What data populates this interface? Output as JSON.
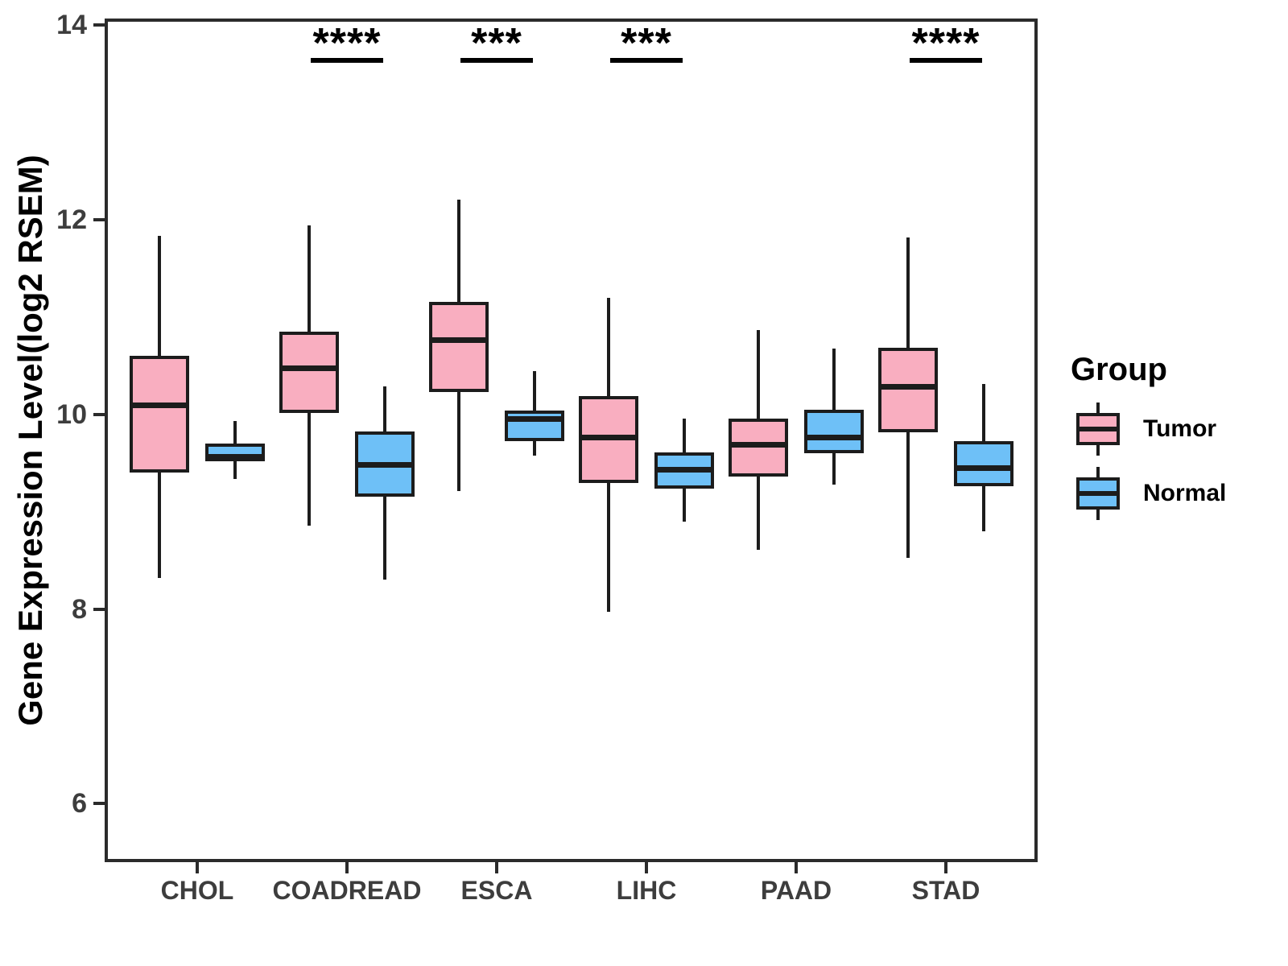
{
  "chart_data": {
    "type": "boxplot",
    "title": "",
    "xlabel": "",
    "ylabel": "Gene Expression Level(log2 RSEM)",
    "ylim": [
      5.4,
      14.07
    ],
    "yticks": [
      14,
      12,
      10,
      8,
      6
    ],
    "grid": "off",
    "legend_position": "right",
    "legend_title": "Group",
    "categories": [
      "CHOL",
      "COADREAD",
      "ESCA",
      "LIHC",
      "PAAD",
      "STAD"
    ],
    "groups": [
      {
        "name": "Tumor",
        "color": "#F9AEC0"
      },
      {
        "name": "Normal",
        "color": "#6EC0F7"
      }
    ],
    "stroke_color": "#1c1c1c",
    "series": [
      {
        "name": "Tumor",
        "boxes": [
          {
            "category": "CHOL",
            "whisker_low": 8.32,
            "q1": 9.4,
            "median": 10.1,
            "q3": 10.6,
            "whisker_high": 11.84
          },
          {
            "category": "COADREAD",
            "whisker_low": 8.86,
            "q1": 10.02,
            "median": 10.48,
            "q3": 10.85,
            "whisker_high": 11.94
          },
          {
            "category": "ESCA",
            "whisker_low": 9.21,
            "q1": 10.23,
            "median": 10.77,
            "q3": 11.16,
            "whisker_high": 12.21
          },
          {
            "category": "LIHC",
            "whisker_low": 7.97,
            "q1": 9.3,
            "median": 9.77,
            "q3": 10.19,
            "whisker_high": 11.2
          },
          {
            "category": "PAAD",
            "whisker_low": 8.61,
            "q1": 9.36,
            "median": 9.69,
            "q3": 9.96,
            "whisker_high": 10.87
          },
          {
            "category": "STAD",
            "whisker_low": 8.53,
            "q1": 9.82,
            "median": 10.29,
            "q3": 10.69,
            "whisker_high": 11.82
          }
        ]
      },
      {
        "name": "Normal",
        "boxes": [
          {
            "category": "CHOL",
            "whisker_low": 9.34,
            "q1": 9.52,
            "median": 9.57,
            "q3": 9.7,
            "whisker_high": 9.93
          },
          {
            "category": "COADREAD",
            "whisker_low": 8.3,
            "q1": 9.16,
            "median": 9.49,
            "q3": 9.83,
            "whisker_high": 10.29
          },
          {
            "category": "ESCA",
            "whisker_low": 9.58,
            "q1": 9.73,
            "median": 9.96,
            "q3": 10.04,
            "whisker_high": 10.45
          },
          {
            "category": "LIHC",
            "whisker_low": 8.9,
            "q1": 9.24,
            "median": 9.44,
            "q3": 9.61,
            "whisker_high": 9.96
          },
          {
            "category": "PAAD",
            "whisker_low": 9.28,
            "q1": 9.6,
            "median": 9.77,
            "q3": 10.05,
            "whisker_high": 10.68
          },
          {
            "category": "STAD",
            "whisker_low": 8.8,
            "q1": 9.26,
            "median": 9.45,
            "q3": 9.73,
            "whisker_high": 10.31
          }
        ]
      }
    ],
    "significance": [
      {
        "category": "COADREAD",
        "label": "****"
      },
      {
        "category": "ESCA",
        "label": "***"
      },
      {
        "category": "LIHC",
        "label": "***"
      },
      {
        "category": "STAD",
        "label": "****"
      }
    ]
  }
}
